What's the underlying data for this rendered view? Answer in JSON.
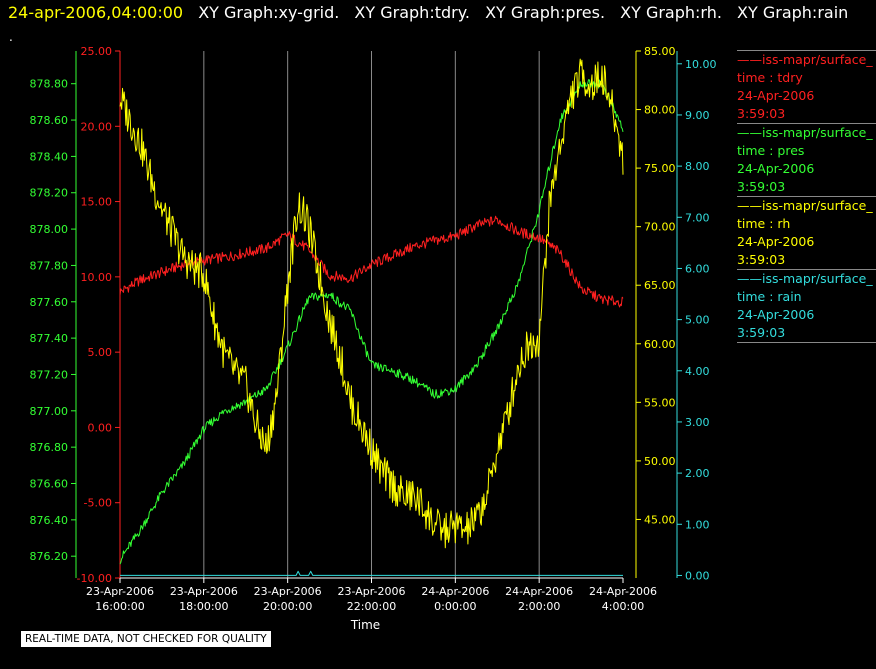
{
  "header": {
    "time": "24-apr-2006,04:00:00",
    "graphs": [
      "XY Graph:xy-grid.",
      "XY Graph:tdry.",
      "XY Graph:pres.",
      "XY Graph:rh.",
      "XY Graph:rain"
    ]
  },
  "dot": ".",
  "disclaimer": "REAL-TIME DATA, NOT CHECKED FOR QUALITY",
  "legend": [
    {
      "name": "iss-mapr/surface_",
      "label": "time : tdry",
      "date": "24-Apr-2006",
      "time": "3:59:03",
      "color": "#ff2020"
    },
    {
      "name": "iss-mapr/surface_",
      "label": "time : pres",
      "date": "24-Apr-2006",
      "time": "3:59:03",
      "color": "#33ff33"
    },
    {
      "name": "iss-mapr/surface_",
      "label": "time : rh",
      "date": "24-Apr-2006",
      "time": "3:59:03",
      "color": "#ffff00"
    },
    {
      "name": "iss-mapr/surface_",
      "label": "time : rain",
      "date": "24-Apr-2006",
      "time": "3:59:03",
      "color": "#33dddd"
    }
  ],
  "chart_data": {
    "type": "line",
    "xlabel": "Time",
    "x_ticks": [
      "23-Apr-2006\n16:00:00",
      "23-Apr-2006\n18:00:00",
      "23-Apr-2006\n20:00:00",
      "23-Apr-2006\n22:00:00",
      "24-Apr-2006\n0:00:00",
      "24-Apr-2006\n2:00:00",
      "24-Apr-2006\n4:00:00"
    ],
    "xlim": [
      0,
      12
    ],
    "grid": true,
    "axes": {
      "tdry": {
        "ylim": [
          -10,
          25
        ],
        "ticks": [
          "25.00",
          "20.00",
          "15.00",
          "10.00",
          "5.00",
          "0.00",
          "-5.00",
          "-10.00"
        ],
        "color": "#ff2020"
      },
      "pres": {
        "ylim": [
          876.08,
          878.98
        ],
        "ticks": [
          "878.80",
          "878.60",
          "878.40",
          "878.20",
          "878.00",
          "877.80",
          "877.60",
          "877.40",
          "877.20",
          "877.00",
          "876.80",
          "876.60",
          "876.40",
          "876.20"
        ],
        "color": "#33ff33"
      },
      "rh": {
        "ylim": [
          40.0,
          85.0
        ],
        "ticks": [
          "85.00",
          "80.00",
          "75.00",
          "70.00",
          "65.00",
          "60.00",
          "55.00",
          "50.00",
          "45.00"
        ],
        "color": "#ffff00"
      },
      "rain": {
        "ylim": [
          -0.05,
          10.25
        ],
        "ticks": [
          "10.00",
          "9.00",
          "8.00",
          "7.00",
          "6.00",
          "5.00",
          "4.00",
          "3.00",
          "2.00",
          "1.00",
          "0.00"
        ],
        "color": "#33dddd"
      }
    },
    "series": [
      {
        "name": "tdry",
        "axis": "tdry",
        "color": "#ff2020",
        "x": [
          0,
          0.5,
          1,
          1.5,
          2,
          2.5,
          3,
          3.5,
          4,
          4.5,
          5,
          5.5,
          6,
          6.5,
          7,
          7.5,
          8,
          8.5,
          9,
          9.5,
          10,
          10.5,
          11,
          11.5,
          12
        ],
        "y": [
          9.0,
          9.8,
          10.3,
          10.8,
          11.1,
          11.3,
          11.6,
          11.9,
          12.8,
          11.8,
          10.1,
          9.9,
          10.8,
          11.4,
          12.0,
          12.4,
          12.7,
          13.4,
          13.8,
          13.0,
          12.6,
          11.6,
          9.2,
          8.5,
          8.3
        ]
      },
      {
        "name": "pres",
        "axis": "pres",
        "color": "#33ff33",
        "x": [
          0,
          0.5,
          1,
          1.5,
          2,
          2.5,
          3,
          3.5,
          4,
          4.5,
          5,
          5.5,
          6,
          6.5,
          7,
          7.5,
          8,
          8.5,
          9,
          9.5,
          10,
          10.5,
          11,
          11.5,
          12
        ],
        "y": [
          876.18,
          876.35,
          876.55,
          876.7,
          876.9,
          877.0,
          877.05,
          877.12,
          877.35,
          877.62,
          877.64,
          877.55,
          877.25,
          877.22,
          877.17,
          877.09,
          877.12,
          877.25,
          877.45,
          877.7,
          878.1,
          878.6,
          878.8,
          878.8,
          878.55
        ]
      },
      {
        "name": "rh",
        "axis": "rh",
        "color": "#ffff00",
        "x": [
          0,
          0.25,
          0.5,
          0.75,
          1,
          1.25,
          1.5,
          1.75,
          2,
          2.25,
          2.5,
          2.75,
          3,
          3.25,
          3.5,
          3.75,
          4,
          4.25,
          4.5,
          4.75,
          5,
          5.25,
          5.5,
          5.75,
          6,
          6.25,
          6.5,
          6.75,
          7,
          7.25,
          7.5,
          7.75,
          8,
          8.25,
          8.5,
          8.75,
          9,
          9.25,
          9.5,
          9.75,
          10,
          10.25,
          10.5,
          10.75,
          11,
          11.25,
          11.5,
          11.75,
          12
        ],
        "y": [
          81.0,
          79.0,
          77.0,
          74.0,
          71.5,
          69.5,
          67.5,
          66.5,
          66.0,
          62.0,
          59.0,
          57.5,
          56.5,
          53.0,
          51.0,
          56.0,
          65.0,
          72.0,
          70.0,
          66.0,
          62.0,
          59.0,
          55.0,
          53.0,
          51.0,
          49.0,
          48.0,
          47.0,
          47.0,
          46.0,
          44.5,
          44.0,
          44.5,
          44.0,
          45.0,
          47.0,
          51.0,
          54.0,
          58.0,
          60.0,
          60.5,
          72.0,
          77.0,
          81.0,
          83.0,
          82.0,
          83.0,
          80.0,
          76.0
        ]
      },
      {
        "name": "rain",
        "axis": "rain",
        "color": "#33dddd",
        "x": [
          0,
          4.2,
          4.25,
          4.3,
          4.5,
          4.55,
          4.6,
          12
        ],
        "y": [
          0,
          0,
          0.08,
          0,
          0,
          0.08,
          0,
          0
        ]
      }
    ]
  }
}
